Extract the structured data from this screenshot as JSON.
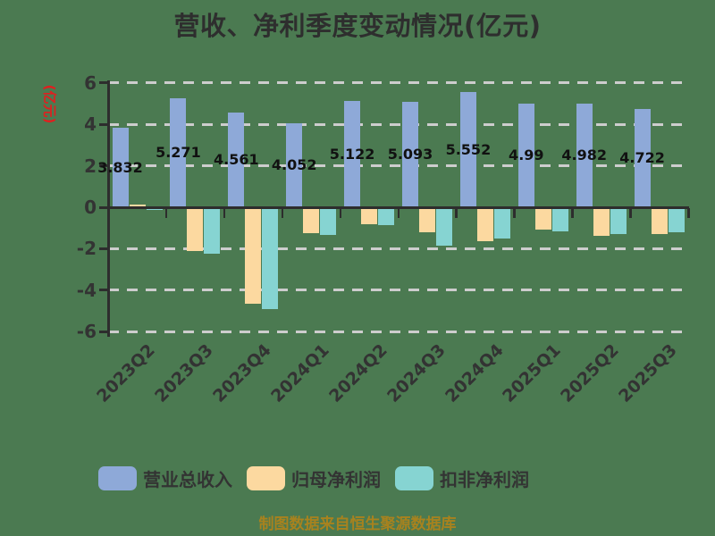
{
  "title": "营收、净利季度变动情况(亿元)",
  "y_axis": {
    "name": "(亿元)",
    "ticks": [
      6,
      4,
      2,
      0,
      -2,
      -4,
      -6
    ]
  },
  "footer": "制图数据来自恒生聚源数据库",
  "colors": {
    "background": "#4b7a51",
    "revenue_bar": "#8ea9d8",
    "net_profit_bar": "#fcd9a0",
    "deducted_profit_bar": "#86d4d2",
    "axis": "#2d2d2d",
    "gridline": "#cdcdcd",
    "title_text": "#2e2e2e",
    "axis_label_text": "#333333",
    "value_label_text": "#111111",
    "y_axis_name_text": "#e01f1f",
    "footer_text": "#a8821e"
  },
  "legend": {
    "items": [
      {
        "label": "营业总收入",
        "color": "#8ea9d8"
      },
      {
        "label": "归母净利润",
        "color": "#fcd9a0"
      },
      {
        "label": "扣非净利润",
        "color": "#86d4d2"
      }
    ]
  },
  "chart_data": {
    "type": "bar",
    "categories": [
      "2023Q2",
      "2023Q3",
      "2023Q4",
      "2024Q1",
      "2024Q2",
      "2024Q3",
      "2024Q4",
      "2025Q1",
      "2025Q2",
      "2025Q3"
    ],
    "series": [
      {
        "name": "营业总收入",
        "color": "#8ea9d8",
        "values": [
          3.832,
          5.271,
          4.561,
          4.052,
          5.122,
          5.093,
          5.552,
          4.99,
          4.982,
          4.722
        ],
        "value_labels": [
          "3.832",
          "5.271",
          "4.561",
          "4.052",
          "5.122",
          "5.093",
          "5.552",
          "4.99",
          "4.982",
          "4.722"
        ]
      },
      {
        "name": "归母净利润",
        "color": "#fcd9a0",
        "values": [
          0.13,
          -2.06,
          -4.6,
          -1.17,
          -0.77,
          -1.15,
          -1.59,
          -1.03,
          -1.31,
          -1.22
        ]
      },
      {
        "name": "扣非净利润",
        "color": "#86d4d2",
        "values": [
          -0.08,
          -2.16,
          -4.86,
          -1.27,
          -0.8,
          -1.77,
          -1.43,
          -1.1,
          -1.21,
          -1.16
        ]
      }
    ],
    "title": "营收、净利季度变动情况(亿元)",
    "xlabel": "",
    "ylabel": "(亿元)",
    "ylim": [
      -6,
      6
    ],
    "grid": "dashed-horizontal",
    "legend_position": "bottom"
  }
}
